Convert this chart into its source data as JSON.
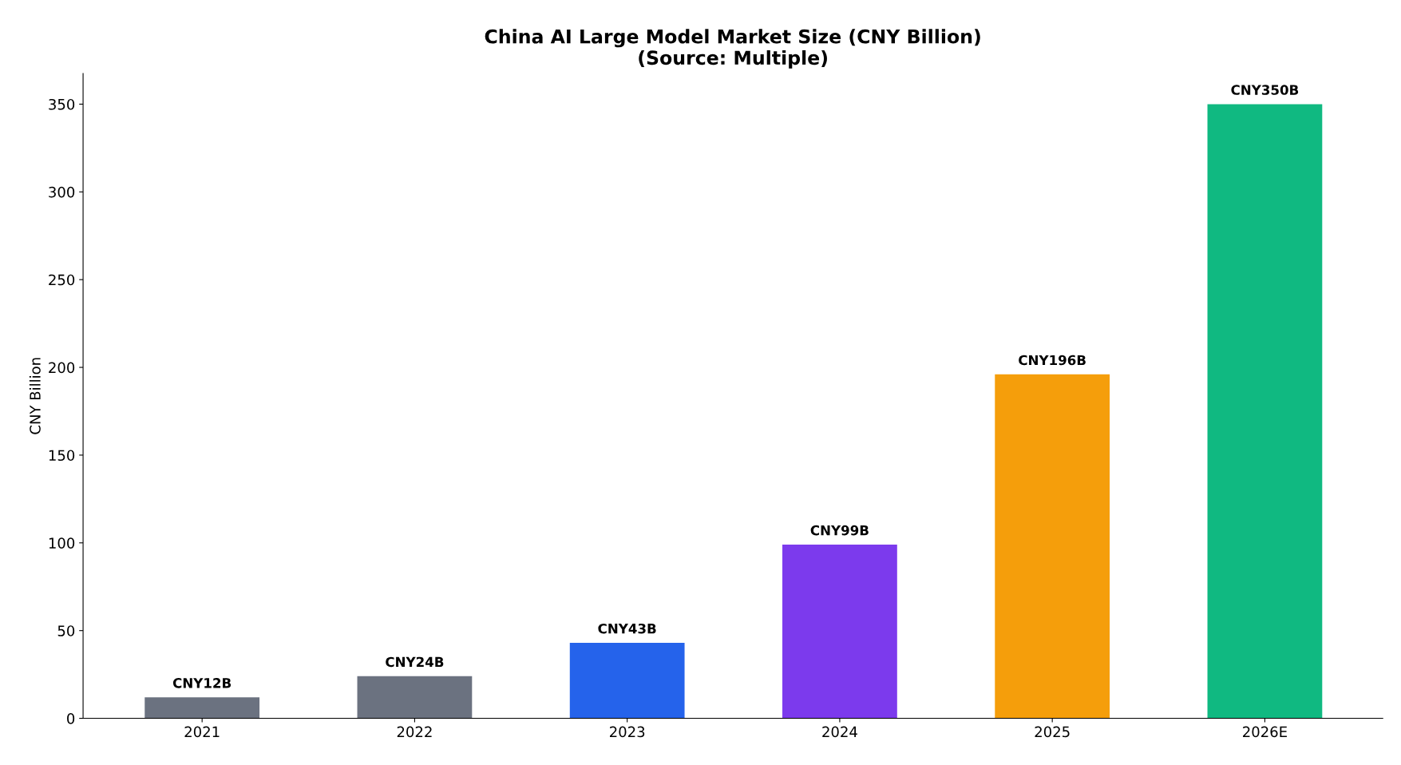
{
  "chart_data": {
    "type": "bar",
    "title": "China AI Large Model Market Size (CNY Billion)\n(Source: Multiple)",
    "ylabel": "CNY Billion",
    "categories": [
      "2021",
      "2022",
      "2023",
      "2024",
      "2025",
      "2026E"
    ],
    "values": [
      12,
      24,
      43,
      99,
      196,
      350
    ],
    "colors": [
      "#6b7280",
      "#6b7280",
      "#2563eb",
      "#7c3aed",
      "#f59e0b",
      "#10b981"
    ],
    "value_labels": [
      "CNY12B",
      "CNY24B",
      "CNY43B",
      "CNY99B",
      "CNY196B",
      "CNY350B"
    ],
    "ylim": [
      0,
      367.5
    ],
    "yticks": [
      0,
      50,
      100,
      150,
      200,
      250,
      300,
      350
    ],
    "grid": false,
    "legend": false
  }
}
